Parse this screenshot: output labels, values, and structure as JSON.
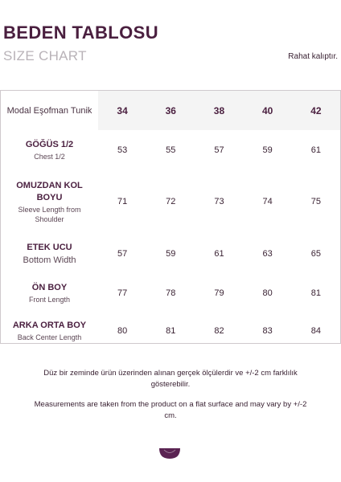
{
  "header": {
    "title": "BEDEN TABLOSU",
    "subtitle": "SIZE CHART",
    "note": "Rahat kalıptır."
  },
  "table": {
    "corner_label": "Modal Eşofman Tunik",
    "sizes": [
      "34",
      "36",
      "38",
      "40",
      "42"
    ],
    "rows": [
      {
        "label_tr": "GÖĞÜS 1/2",
        "label_en": "Chest 1/2",
        "values": [
          "53",
          "55",
          "57",
          "59",
          "61"
        ]
      },
      {
        "label_tr": "OMUZDAN KOL BOYU",
        "label_en": "Sleeve Length from Shoulder",
        "values": [
          "71",
          "72",
          "73",
          "74",
          "75"
        ]
      },
      {
        "label_tr": "ETEK UCU",
        "label_en": "Bottom Width",
        "values": [
          "57",
          "59",
          "61",
          "63",
          "65"
        ]
      },
      {
        "label_tr": "ÖN BOY",
        "label_en": "Front Length",
        "values": [
          "77",
          "78",
          "79",
          "80",
          "81"
        ]
      },
      {
        "label_tr": "ARKA ORTA BOY",
        "label_en": "Back Center Length",
        "values": [
          "80",
          "81",
          "82",
          "83",
          "84"
        ]
      }
    ]
  },
  "footer": {
    "tr_text": "Düz bir zeminde ürün üzerinden alınan gerçek ölçülerdir ve +/-2 cm farklılık gösterebilir.",
    "en_text": "Measurements are taken from the product on a flat surface and may vary by +/-2 cm."
  },
  "colors": {
    "brand": "#4a1f3f",
    "header_bg": "#f4f4f4",
    "subtitle": "#b9b3b8",
    "logo": "#5a2352"
  },
  "icons": {
    "brand_logo": "brand-logo-icon"
  }
}
